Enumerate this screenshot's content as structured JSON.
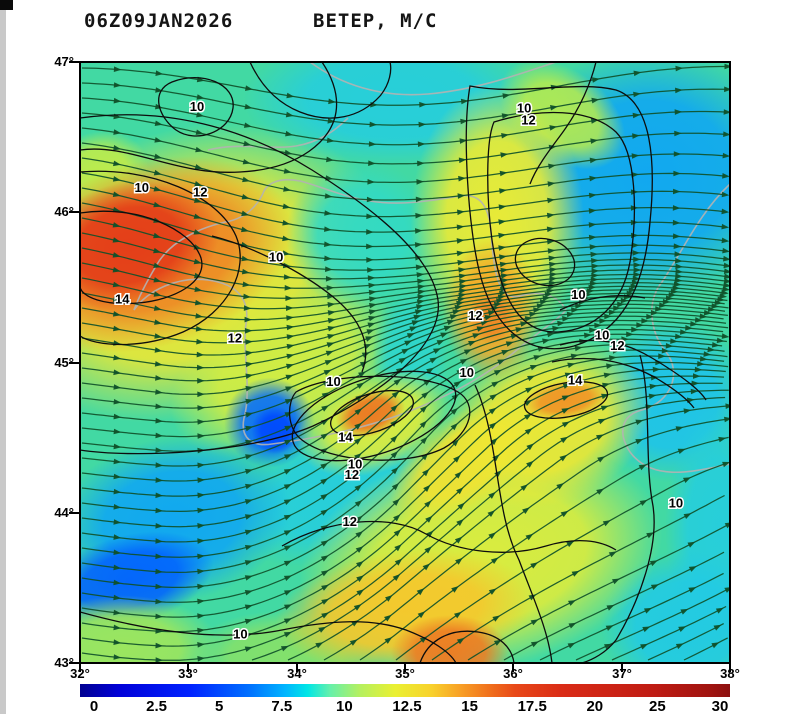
{
  "header": {
    "timestamp": "06Z09JAN2026",
    "title": "ВЕТЕР, М/С"
  },
  "chart_data": {
    "type": "heatmap",
    "subtype": "wind-speed-streamline-map",
    "title": "ВЕТЕР, М/С",
    "timestamp": "06Z09JAN2026",
    "units": "м/с",
    "region": {
      "lon_min": 32,
      "lon_max": 38,
      "lat_min": 43,
      "lat_max": 47
    },
    "x_ticks": [
      "32°",
      "33°",
      "34°",
      "35°",
      "36°",
      "37°",
      "38°"
    ],
    "y_ticks": [
      "47°",
      "46°",
      "45°",
      "44°",
      "43°"
    ],
    "grid": false,
    "colorbar": {
      "labels": [
        "0",
        "2.5",
        "5",
        "7.5",
        "10",
        "12.5",
        "15",
        "17.5",
        "20",
        "25",
        "30"
      ],
      "gradient": [
        {
          "pos": 0.0,
          "c": "#000090"
        },
        {
          "pos": 0.06,
          "c": "#0000d8"
        },
        {
          "pos": 0.17,
          "c": "#0022ff"
        },
        {
          "pos": 0.26,
          "c": "#0070ff"
        },
        {
          "pos": 0.315,
          "c": "#00b4ff"
        },
        {
          "pos": 0.35,
          "c": "#00e6e6"
        },
        {
          "pos": 0.385,
          "c": "#66f0aa"
        },
        {
          "pos": 0.43,
          "c": "#b4f060"
        },
        {
          "pos": 0.485,
          "c": "#eaf032"
        },
        {
          "pos": 0.54,
          "c": "#f8d22c"
        },
        {
          "pos": 0.585,
          "c": "#f8a026"
        },
        {
          "pos": 0.63,
          "c": "#f0701c"
        },
        {
          "pos": 0.67,
          "c": "#e84818"
        },
        {
          "pos": 0.74,
          "c": "#da2c16"
        },
        {
          "pos": 0.88,
          "c": "#c01c14"
        },
        {
          "pos": 0.97,
          "c": "#a01410"
        },
        {
          "pos": 1.0,
          "c": "#8c1010"
        }
      ]
    },
    "value_palette": [
      [
        0,
        "#0000a0"
      ],
      [
        3,
        "#0018e8"
      ],
      [
        5,
        "#0050ff"
      ],
      [
        6.5,
        "#0898f8"
      ],
      [
        7.5,
        "#20c8e8"
      ],
      [
        8.5,
        "#34dcc0"
      ],
      [
        9.5,
        "#48d896"
      ],
      [
        10.5,
        "#7ee06e"
      ],
      [
        11.5,
        "#c0ec4a"
      ],
      [
        12.2,
        "#eeee34"
      ],
      [
        13,
        "#f6d62e"
      ],
      [
        13.8,
        "#f4ae28"
      ],
      [
        14.6,
        "#ee8424"
      ],
      [
        15.5,
        "#e85c1e"
      ],
      [
        16.5,
        "#e43c18"
      ],
      [
        18,
        "#d62a16"
      ],
      [
        20,
        "#c41e14"
      ],
      [
        30,
        "#8c1010"
      ]
    ],
    "base_speed": 9.2,
    "speed_field_blobs": [
      {
        "lon": 33.0,
        "lat": 45.6,
        "rx": 1.9,
        "ry": 0.95,
        "rot": -18,
        "v": 12.4
      },
      {
        "lon": 33.9,
        "lat": 44.95,
        "rx": 1.15,
        "ry": 0.5,
        "rot": -28,
        "v": 11.8
      },
      {
        "lon": 32.15,
        "lat": 46.25,
        "rx": 0.5,
        "ry": 0.28,
        "rot": -20,
        "v": 11.5
      },
      {
        "lon": 34.9,
        "lat": 46.75,
        "rx": 1.4,
        "ry": 0.45,
        "rot": 0,
        "v": 7.8
      },
      {
        "lon": 37.25,
        "lat": 46.25,
        "rx": 1.35,
        "ry": 0.85,
        "rot": 0,
        "v": 6.8
      },
      {
        "lon": 34.6,
        "lat": 45.85,
        "rx": 0.7,
        "ry": 0.5,
        "rot": 0,
        "v": 8.4
      },
      {
        "lon": 35.05,
        "lat": 45.05,
        "rx": 0.35,
        "ry": 0.45,
        "rot": 0,
        "v": 8.2
      },
      {
        "lon": 37.45,
        "lat": 44.75,
        "rx": 0.75,
        "ry": 0.55,
        "rot": 0,
        "v": 7.4
      },
      {
        "lon": 37.9,
        "lat": 43.9,
        "rx": 0.5,
        "ry": 0.8,
        "rot": 0,
        "v": 7.8
      },
      {
        "lon": 37.6,
        "lat": 43.25,
        "rx": 0.8,
        "ry": 0.5,
        "rot": 0,
        "v": 7.6
      },
      {
        "lon": 34.35,
        "lat": 44.15,
        "rx": 1.0,
        "ry": 0.45,
        "rot": -25,
        "v": 7.8
      },
      {
        "lon": 32.85,
        "lat": 43.95,
        "rx": 1.1,
        "ry": 0.55,
        "rot": -10,
        "v": 6.8
      },
      {
        "lon": 32.45,
        "lat": 43.55,
        "rx": 0.8,
        "ry": 0.3,
        "rot": -15,
        "v": 5.4
      },
      {
        "lon": 33.75,
        "lat": 44.6,
        "rx": 0.42,
        "ry": 0.3,
        "rot": 0,
        "v": 5.6
      },
      {
        "lon": 33.8,
        "lat": 44.55,
        "rx": 0.22,
        "ry": 0.16,
        "rot": 0,
        "v": 4.8
      },
      {
        "lon": 35.7,
        "lat": 43.7,
        "rx": 1.7,
        "ry": 0.75,
        "rot": -12,
        "v": 12.0
      },
      {
        "lon": 35.55,
        "lat": 44.35,
        "rx": 0.8,
        "ry": 0.3,
        "rot": -35,
        "v": 12.6
      },
      {
        "lon": 32.4,
        "lat": 43.1,
        "rx": 0.9,
        "ry": 0.35,
        "rot": 0,
        "v": 11.0
      },
      {
        "lon": 33.9,
        "lat": 43.05,
        "rx": 0.9,
        "ry": 0.3,
        "rot": 0,
        "v": 10.6
      },
      {
        "lon": 36.45,
        "lat": 46.65,
        "rx": 0.65,
        "ry": 0.3,
        "rot": 35,
        "v": 11.3
      },
      {
        "lon": 35.85,
        "lat": 45.95,
        "rx": 0.8,
        "ry": 0.9,
        "rot": 0,
        "v": 12.3
      },
      {
        "lon": 36.3,
        "lat": 44.6,
        "rx": 1.0,
        "ry": 0.55,
        "rot": -20,
        "v": 12.4
      },
      {
        "lon": 34.72,
        "lat": 44.6,
        "rx": 0.75,
        "ry": 0.33,
        "rot": -20,
        "v": 12.0
      },
      {
        "lon": 32.65,
        "lat": 45.72,
        "rx": 1.35,
        "ry": 0.62,
        "rot": -16,
        "v": 14.6
      },
      {
        "lon": 35.8,
        "lat": 45.35,
        "rx": 0.45,
        "ry": 0.48,
        "rot": 0,
        "v": 13.9
      },
      {
        "lon": 35.8,
        "lat": 45.3,
        "rx": 0.22,
        "ry": 0.18,
        "rot": 0,
        "v": 14.5
      },
      {
        "lon": 35.0,
        "lat": 43.35,
        "rx": 1.2,
        "ry": 0.4,
        "rot": -6,
        "v": 13.3
      },
      {
        "lon": 36.48,
        "lat": 44.75,
        "rx": 0.4,
        "ry": 0.13,
        "rot": -8,
        "v": 14.3
      },
      {
        "lon": 34.68,
        "lat": 44.66,
        "rx": 0.33,
        "ry": 0.15,
        "rot": -18,
        "v": 14.9
      },
      {
        "lon": 35.42,
        "lat": 43.07,
        "rx": 0.55,
        "ry": 0.25,
        "rot": 0,
        "v": 14.8
      },
      {
        "lon": 32.45,
        "lat": 45.78,
        "rx": 0.85,
        "ry": 0.42,
        "rot": -14,
        "v": 16.6
      }
    ],
    "contour_levels_visible": [
      10,
      12,
      14
    ],
    "contour_labels": [
      {
        "v": "10",
        "lon": 33.08,
        "lat": 46.7
      },
      {
        "v": "10",
        "lon": 32.57,
        "lat": 46.16
      },
      {
        "v": "12",
        "lon": 33.11,
        "lat": 46.13
      },
      {
        "v": "14",
        "lon": 32.39,
        "lat": 45.42
      },
      {
        "v": "12",
        "lon": 33.43,
        "lat": 45.16
      },
      {
        "v": "10",
        "lon": 33.81,
        "lat": 45.7
      },
      {
        "v": "10",
        "lon": 36.1,
        "lat": 46.69
      },
      {
        "v": "12",
        "lon": 36.14,
        "lat": 46.61
      },
      {
        "v": "12",
        "lon": 35.65,
        "lat": 45.31
      },
      {
        "v": "10",
        "lon": 36.6,
        "lat": 45.45
      },
      {
        "v": "10",
        "lon": 36.82,
        "lat": 45.18
      },
      {
        "v": "12",
        "lon": 36.96,
        "lat": 45.11
      },
      {
        "v": "10",
        "lon": 34.34,
        "lat": 44.87
      },
      {
        "v": "10",
        "lon": 35.57,
        "lat": 44.93
      },
      {
        "v": "14",
        "lon": 36.57,
        "lat": 44.88
      },
      {
        "v": "14",
        "lon": 34.45,
        "lat": 44.5
      },
      {
        "v": "10",
        "lon": 34.54,
        "lat": 44.32
      },
      {
        "v": "12",
        "lon": 34.51,
        "lat": 44.25
      },
      {
        "v": "12",
        "lon": 34.49,
        "lat": 43.94
      },
      {
        "v": "10",
        "lon": 33.48,
        "lat": 43.19
      },
      {
        "v": "10",
        "lon": 37.5,
        "lat": 44.06
      }
    ],
    "flow_regions": [
      {
        "area": "north-half",
        "direction": "E"
      },
      {
        "area": "southeast",
        "direction": "NE"
      },
      {
        "area": "southwest",
        "direction": "E to ENE"
      }
    ],
    "colors": {
      "stream": "#10512a",
      "contour": "#0d0d0d",
      "coast": "#b2b2b2",
      "frame": "#000000"
    }
  }
}
